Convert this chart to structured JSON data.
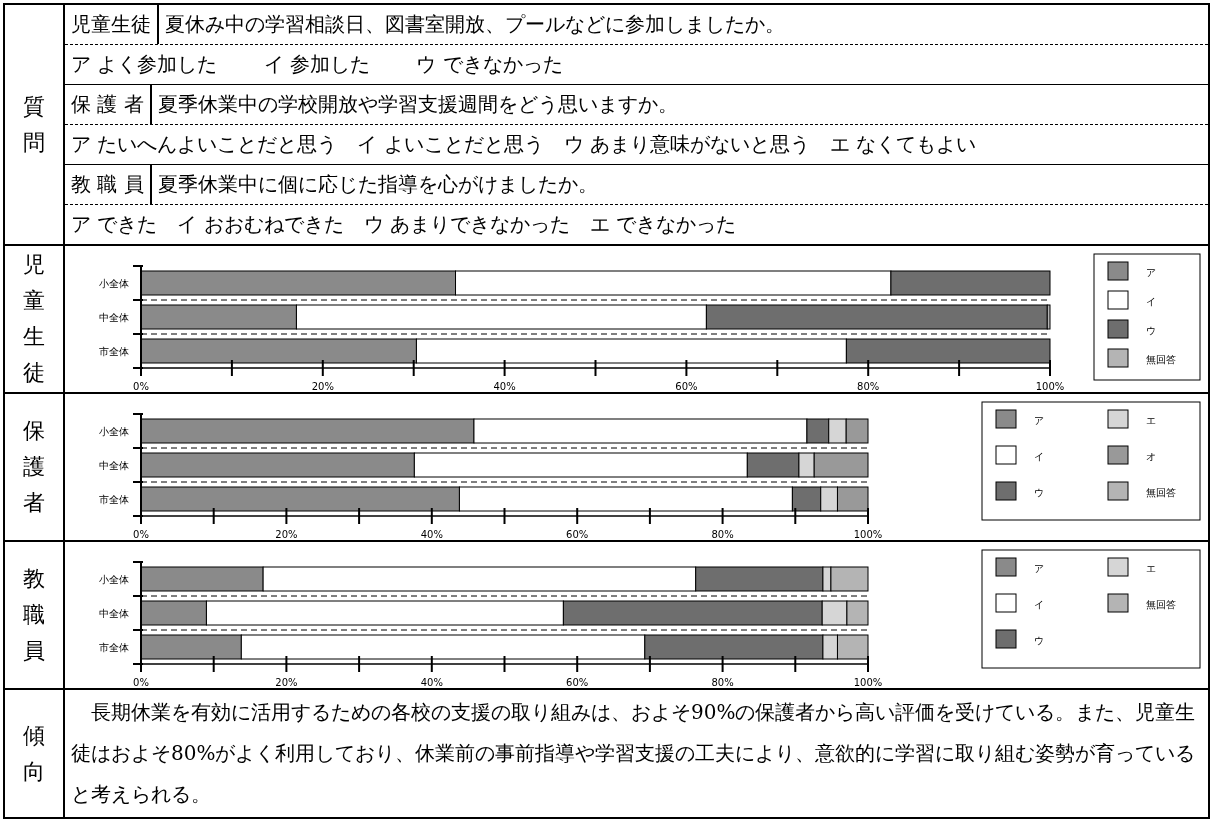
{
  "chart_data": [
    {
      "type": "other",
      "title": "質問",
      "annotations": [
        "児童生徒",
        "夏休み中の学習相談日、図書室開放、プールなどに参加しましたか。",
        "ア よく参加した　　 イ 参加した　　 ウ できなかった",
        "保 護 者",
        "夏季休業中の学校開放や学習支援週間をどう思いますか。",
        "ア たいへんよいことだと思う　イ よいことだと思う　ウ あまり意味がないと思う　エ なくてもよい",
        "教 職 員",
        "夏季休業中に個に応じた指導を心がけましたか。",
        "ア できた　イ おおむねできた　ウ あまりできなかった　エ できなかった"
      ]
    },
    {
      "type": "bar",
      "title": "児童生徒",
      "orientation": "horizontal",
      "stacked": true,
      "categories": [
        "小全体",
        "中全体",
        "市全体"
      ],
      "xlim": [
        0,
        100
      ],
      "xticks": [
        {
          "value": 0,
          "label": "0%"
        },
        {
          "value": 10,
          "label": null
        },
        {
          "value": 20,
          "label": "20%"
        },
        {
          "value": 30,
          "label": null
        },
        {
          "value": 40,
          "label": "40%"
        },
        {
          "value": 50,
          "label": null
        },
        {
          "value": 60,
          "label": "60%"
        },
        {
          "value": 70,
          "label": null
        },
        {
          "value": 80,
          "label": "80%"
        },
        {
          "value": 90,
          "label": null
        },
        {
          "value": 100,
          "label": "100%"
        }
      ],
      "legend": "right",
      "series": [
        {
          "name": "ア",
          "color": "#8a8a8a",
          "values": [
            34.6,
            17.1,
            30.3
          ]
        },
        {
          "name": "イ",
          "color": "#ffffff",
          "values": [
            47.9,
            45.1,
            47.3
          ]
        },
        {
          "name": "ウ",
          "color": "#6e6e6e",
          "values": [
            17.5,
            37.5,
            22.4
          ]
        },
        {
          "name": "無回答",
          "color": "#b4b4b4",
          "values": [
            null,
            0.3,
            null
          ]
        }
      ]
    },
    {
      "type": "bar",
      "title": "保護者",
      "orientation": "horizontal",
      "stacked": true,
      "categories": [
        "小全体",
        "中全体",
        "市全体"
      ],
      "xlim": [
        0,
        100
      ],
      "xticks": [
        {
          "value": 0,
          "label": "0%"
        },
        {
          "value": 10,
          "label": null
        },
        {
          "value": 20,
          "label": "20%"
        },
        {
          "value": 30,
          "label": null
        },
        {
          "value": 40,
          "label": "40%"
        },
        {
          "value": 50,
          "label": null
        },
        {
          "value": 60,
          "label": "60%"
        },
        {
          "value": 70,
          "label": null
        },
        {
          "value": 80,
          "label": "80%"
        },
        {
          "value": 90,
          "label": null
        },
        {
          "value": 100,
          "label": "100%"
        }
      ],
      "legend": "right",
      "series": [
        {
          "name": "ア",
          "color": "#8a8a8a",
          "values": [
            45.8,
            37.6,
            43.8
          ]
        },
        {
          "name": "イ",
          "color": "#ffffff",
          "values": [
            45.8,
            45.8,
            45.8
          ]
        },
        {
          "name": "ウ",
          "color": "#6e6e6e",
          "values": [
            3.0,
            7.1,
            3.9
          ]
        },
        {
          "name": "エ",
          "color": "#d6d6d6",
          "values": [
            2.4,
            2.1,
            2.3
          ]
        },
        {
          "name": "オ",
          "color": "#999999",
          "values": [
            3.0,
            7.4,
            4.2
          ]
        },
        {
          "name": "無回答",
          "color": "#b4b4b4",
          "values": [
            null,
            null,
            null
          ]
        }
      ]
    },
    {
      "type": "bar",
      "title": "教職員",
      "orientation": "horizontal",
      "stacked": true,
      "categories": [
        "小全体",
        "中全体",
        "市全体"
      ],
      "xlim": [
        0,
        100
      ],
      "xticks": [
        {
          "value": 0,
          "label": "0%"
        },
        {
          "value": 10,
          "label": null
        },
        {
          "value": 20,
          "label": "20%"
        },
        {
          "value": 30,
          "label": null
        },
        {
          "value": 40,
          "label": "40%"
        },
        {
          "value": 50,
          "label": null
        },
        {
          "value": 60,
          "label": "60%"
        },
        {
          "value": 70,
          "label": null
        },
        {
          "value": 80,
          "label": "80%"
        },
        {
          "value": 90,
          "label": null
        },
        {
          "value": 100,
          "label": "100%"
        }
      ],
      "legend": "right",
      "series": [
        {
          "name": "ア",
          "color": "#8a8a8a",
          "values": [
            16.8,
            9.0,
            13.8
          ]
        },
        {
          "name": "イ",
          "color": "#ffffff",
          "values": [
            59.5,
            49.1,
            55.5
          ]
        },
        {
          "name": "ウ",
          "color": "#6e6e6e",
          "values": [
            17.5,
            35.6,
            24.5
          ]
        },
        {
          "name": "エ",
          "color": "#d6d6d6",
          "values": [
            1.1,
            3.4,
            2.0
          ]
        },
        {
          "name": "無回答",
          "color": "#b4b4b4",
          "values": [
            5.1,
            2.9,
            4.2
          ]
        }
      ]
    },
    {
      "type": "other",
      "title": "傾向",
      "annotations": [
        "　長期休業を有効に活用するための各校の支援の取り組みは、およそ90%の保護者から高い評価を受けている。また、児童生徒はおよそ80%がよく利用しており、休業前の事前指導や学習支援の工夫により、意欲的に学習に取り組む姿勢が育っていると考えられる。"
      ]
    }
  ]
}
